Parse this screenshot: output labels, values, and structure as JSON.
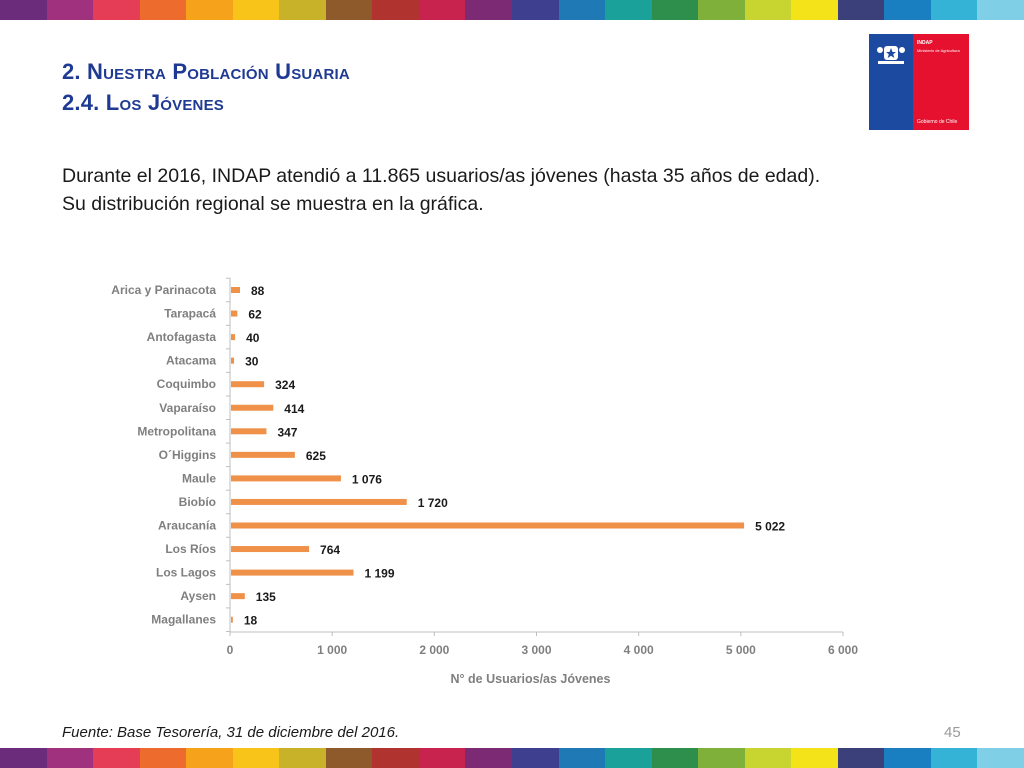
{
  "header": {
    "title_line1": "2. Nuestra Población Usuaria",
    "title_line2": "2.4. Los Jóvenes"
  },
  "logo": {
    "org": "INDAP",
    "ministry": "Ministerio de Agricultura",
    "government": "Gobierno de Chile"
  },
  "intro": {
    "line1": "Durante el 2016, INDAP atendió a 11.865 usuarios/as jóvenes (hasta 35 años de edad).",
    "line2": "Su distribución regional se muestra en la gráfica."
  },
  "chart_data": {
    "type": "bar",
    "orientation": "horizontal",
    "categories": [
      "Arica y Parinacota",
      "Tarapacá",
      "Antofagasta",
      "Atacama",
      "Coquimbo",
      "Vaparaíso",
      "Metropolitana",
      "O´Higgins",
      "Maule",
      "Biobío",
      "Araucanía",
      "Los Ríos",
      "Los Lagos",
      "Aysen",
      "Magallanes"
    ],
    "values": [
      88,
      62,
      40,
      30,
      324,
      414,
      347,
      625,
      1076,
      1720,
      5022,
      764,
      1199,
      135,
      18
    ],
    "data_labels": [
      "88",
      "62",
      "40",
      "30",
      "324",
      "414",
      "347",
      "625",
      "1 076",
      "1 720",
      "5 022",
      "764",
      "1 199",
      "135",
      "18"
    ],
    "xlabel": "N° de Usuarios/as Jóvenes",
    "ylabel": "",
    "xlim": [
      0,
      6000
    ],
    "xticks": [
      0,
      1000,
      2000,
      3000,
      4000,
      5000,
      6000
    ],
    "xtick_labels": [
      "0",
      "1 000",
      "2 000",
      "3 000",
      "4 000",
      "5 000",
      "6 000"
    ],
    "grid": false,
    "bar_color": "#f0914a"
  },
  "footer": {
    "source": "Fuente: Base Tesorería, 31 de diciembre del 2016.",
    "page_number": "45"
  },
  "stripe_colors": [
    "#6b2d7b",
    "#a0317f",
    "#e63d57",
    "#ec6b2d",
    "#f6a21a",
    "#f9c41a",
    "#c7b22a",
    "#8e5a2b",
    "#b0332f",
    "#c8234f",
    "#7b2a73",
    "#3f3f8f",
    "#1e79b4",
    "#1aa19a",
    "#2e8f4d",
    "#7fb13a",
    "#c8d530",
    "#f5e31a",
    "#3b3f7a",
    "#1a7fc1",
    "#34b3d6",
    "#7fd0e6"
  ]
}
